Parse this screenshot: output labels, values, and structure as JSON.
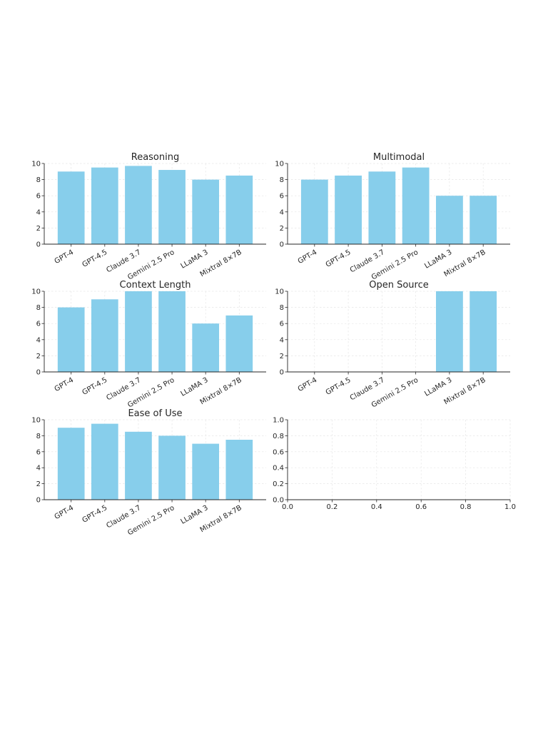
{
  "chart_data": [
    {
      "type": "bar",
      "title": "Reasoning",
      "categories": [
        "GPT-4",
        "GPT-4.5",
        "Claude 3.7",
        "Gemini 2.5 Pro",
        "LLaMA 3",
        "Mixtral 8×7B"
      ],
      "values": [
        9,
        9.5,
        9.7,
        9.2,
        8,
        8.5
      ],
      "ylim": [
        0,
        10
      ],
      "yticks": [
        "0",
        "2",
        "4",
        "6",
        "8",
        "10"
      ],
      "grid": true
    },
    {
      "type": "bar",
      "title": "Multimodal",
      "categories": [
        "GPT-4",
        "GPT-4.5",
        "Claude 3.7",
        "Gemini 2.5 Pro",
        "LLaMA 3",
        "Mixtral 8×7B"
      ],
      "values": [
        8,
        8.5,
        9,
        9.5,
        6,
        6
      ],
      "ylim": [
        0,
        10
      ],
      "yticks": [
        "0",
        "2",
        "4",
        "6",
        "8",
        "10"
      ],
      "grid": true
    },
    {
      "type": "bar",
      "title": "Context Length",
      "categories": [
        "GPT-4",
        "GPT-4.5",
        "Claude 3.7",
        "Gemini 2.5 Pro",
        "LLaMA 3",
        "Mixtral 8×7B"
      ],
      "values": [
        8,
        9,
        10,
        10,
        6,
        7
      ],
      "ylim": [
        0,
        10
      ],
      "yticks": [
        "0",
        "2",
        "4",
        "6",
        "8",
        "10"
      ],
      "grid": true
    },
    {
      "type": "bar",
      "title": "Open Source",
      "categories": [
        "GPT-4",
        "GPT-4.5",
        "Claude 3.7",
        "Gemini 2.5 Pro",
        "LLaMA 3",
        "Mixtral 8×7B"
      ],
      "values": [
        0,
        0,
        0,
        0,
        10,
        10
      ],
      "ylim": [
        0,
        10
      ],
      "yticks": [
        "0",
        "2",
        "4",
        "6",
        "8",
        "10"
      ],
      "grid": true
    },
    {
      "type": "bar",
      "title": "Ease of Use",
      "categories": [
        "GPT-4",
        "GPT-4.5",
        "Claude 3.7",
        "Gemini 2.5 Pro",
        "LLaMA 3",
        "Mixtral 8×7B"
      ],
      "values": [
        9,
        9.5,
        8.5,
        8,
        7,
        7.5
      ],
      "ylim": [
        0,
        10
      ],
      "yticks": [
        "0",
        "2",
        "4",
        "6",
        "8",
        "10"
      ],
      "grid": true
    },
    {
      "type": "empty",
      "title": "",
      "xlim": [
        0,
        1
      ],
      "ylim": [
        0,
        1
      ],
      "xticks": [
        "0.0",
        "0.2",
        "0.4",
        "0.6",
        "0.8",
        "1.0"
      ],
      "yticks": [
        "0.0",
        "0.2",
        "0.4",
        "0.6",
        "0.8",
        "1.0"
      ],
      "grid": true
    }
  ],
  "colors": {
    "bar": "#87ceeb",
    "axis": "#262626",
    "grid": "#e6e6e6"
  }
}
